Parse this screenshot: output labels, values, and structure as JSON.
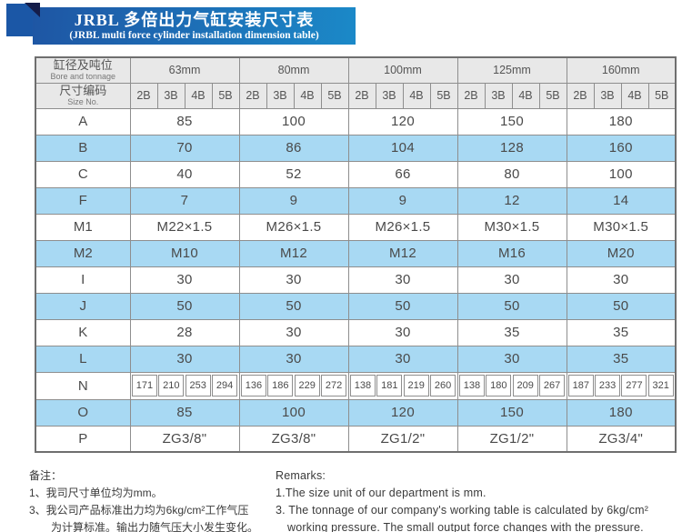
{
  "title": {
    "line1": "JRBL 多倍出力气缸安装尺寸表",
    "line2": "(JRBL multi force cylinder installation dimension table)"
  },
  "colors": {
    "banner_left": "#1e56a4",
    "banner_right": "#1b89c8",
    "corner_square": "#1b57a6",
    "corner_fold": "#151d4a",
    "header_bg": "#e8e8e8",
    "row_alt_blue": "#a8d9f3",
    "border": "#8e8e8e"
  },
  "table": {
    "corner_zh": "缸径及吨位",
    "corner_en": "Bore and tonnage",
    "size_no_zh": "尺寸编码",
    "size_no_en": "Size No.",
    "bores": [
      "63mm",
      "80mm",
      "100mm",
      "125mm",
      "160mm"
    ],
    "sub_cols": [
      "2B",
      "3B",
      "4B",
      "5B"
    ],
    "rows": [
      {
        "label": "A",
        "values": [
          "85",
          "100",
          "120",
          "150",
          "180"
        ]
      },
      {
        "label": "B",
        "values": [
          "70",
          "86",
          "104",
          "128",
          "160"
        ]
      },
      {
        "label": "C",
        "values": [
          "40",
          "52",
          "66",
          "80",
          "100"
        ]
      },
      {
        "label": "F",
        "values": [
          "7",
          "9",
          "9",
          "12",
          "14"
        ]
      },
      {
        "label": "M1",
        "values": [
          "M22×1.5",
          "M26×1.5",
          "M26×1.5",
          "M30×1.5",
          "M30×1.5"
        ]
      },
      {
        "label": "M2",
        "values": [
          "M10",
          "M12",
          "M12",
          "M16",
          "M20"
        ]
      },
      {
        "label": "I",
        "values": [
          "30",
          "30",
          "30",
          "30",
          "30"
        ]
      },
      {
        "label": "J",
        "values": [
          "50",
          "50",
          "50",
          "50",
          "50"
        ]
      },
      {
        "label": "K",
        "values": [
          "28",
          "30",
          "30",
          "35",
          "35"
        ]
      },
      {
        "label": "L",
        "values": [
          "30",
          "30",
          "30",
          "30",
          "35"
        ]
      },
      {
        "label": "N",
        "split": true,
        "values": [
          [
            "171",
            "210",
            "253",
            "294"
          ],
          [
            "136",
            "186",
            "229",
            "272"
          ],
          [
            "138",
            "181",
            "219",
            "260"
          ],
          [
            "138",
            "180",
            "209",
            "267"
          ],
          [
            "187",
            "233",
            "277",
            "321"
          ]
        ]
      },
      {
        "label": "O",
        "values": [
          "85",
          "100",
          "120",
          "150",
          "180"
        ]
      },
      {
        "label": "P",
        "values": [
          "ZG3/8\"",
          "ZG3/8\"",
          "ZG1/2\"",
          "ZG1/2\"",
          "ZG3/4\""
        ]
      }
    ]
  },
  "remarks_zh": {
    "heading": "备注：",
    "lines": [
      "1、我司尺寸单位均为mm。",
      "3、我公司产品标准出力均为6kg/cm²工作气压",
      "为计算标准。输出力随气压大小发生变化。"
    ]
  },
  "remarks_en": {
    "heading": "Remarks:",
    "lines": [
      "1.The size unit of our department is mm.",
      "3. The tonnage of our company's working table is calculated by 6kg/cm²",
      "working pressure. The small output force changes with the pressure."
    ]
  }
}
